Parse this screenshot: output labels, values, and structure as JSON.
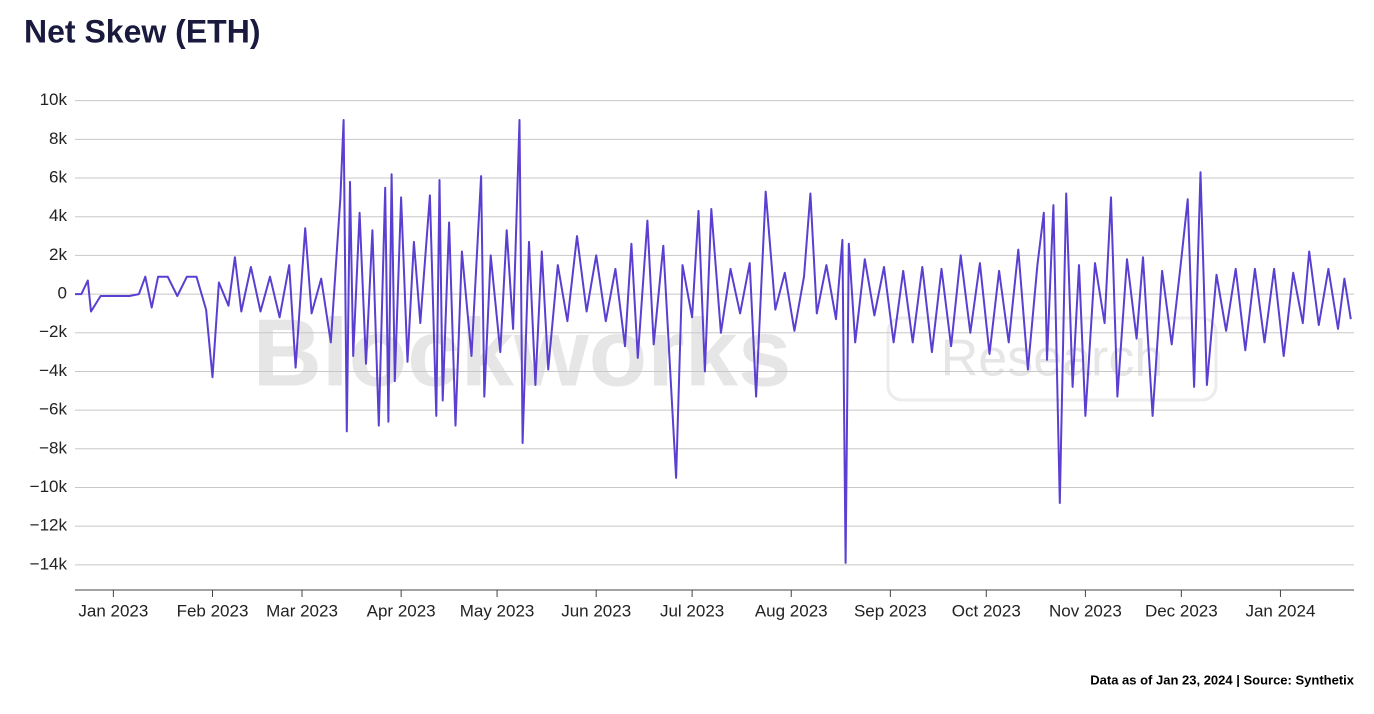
{
  "chart_data": {
    "type": "line",
    "title": "Net Skew (ETH)",
    "footnote": "Data as of Jan 23, 2024 | Source: Synthetix",
    "watermark": [
      "Blockworks",
      "Research"
    ],
    "color": "#5b3fd1",
    "grid": true,
    "x": [
      "2022-12-20",
      "2022-12-22",
      "2022-12-24",
      "2022-12-25",
      "2022-12-28",
      "2022-12-31",
      "2023-01-03",
      "2023-01-06",
      "2023-01-09",
      "2023-01-11",
      "2023-01-13",
      "2023-01-15",
      "2023-01-18",
      "2023-01-21",
      "2023-01-24",
      "2023-01-27",
      "2023-01-30",
      "2023-02-01",
      "2023-02-03",
      "2023-02-06",
      "2023-02-08",
      "2023-02-10",
      "2023-02-13",
      "2023-02-16",
      "2023-02-19",
      "2023-02-22",
      "2023-02-25",
      "2023-02-27",
      "2023-03-02",
      "2023-03-04",
      "2023-03-07",
      "2023-03-10",
      "2023-03-13",
      "2023-03-14",
      "2023-03-15",
      "2023-03-16",
      "2023-03-17",
      "2023-03-19",
      "2023-03-21",
      "2023-03-23",
      "2023-03-25",
      "2023-03-27",
      "2023-03-28",
      "2023-03-29",
      "2023-03-30",
      "2023-04-01",
      "2023-04-03",
      "2023-04-05",
      "2023-04-07",
      "2023-04-10",
      "2023-04-12",
      "2023-04-13",
      "2023-04-14",
      "2023-04-16",
      "2023-04-18",
      "2023-04-20",
      "2023-04-23",
      "2023-04-26",
      "2023-04-27",
      "2023-04-29",
      "2023-05-02",
      "2023-05-04",
      "2023-05-06",
      "2023-05-08",
      "2023-05-09",
      "2023-05-11",
      "2023-05-13",
      "2023-05-15",
      "2023-05-17",
      "2023-05-20",
      "2023-05-23",
      "2023-05-26",
      "2023-05-29",
      "2023-06-01",
      "2023-06-04",
      "2023-06-07",
      "2023-06-10",
      "2023-06-12",
      "2023-06-14",
      "2023-06-17",
      "2023-06-19",
      "2023-06-22",
      "2023-06-26",
      "2023-06-28",
      "2023-07-01",
      "2023-07-03",
      "2023-07-05",
      "2023-07-07",
      "2023-07-10",
      "2023-07-13",
      "2023-07-16",
      "2023-07-19",
      "2023-07-21",
      "2023-07-24",
      "2023-07-27",
      "2023-07-30",
      "2023-08-02",
      "2023-08-05",
      "2023-08-07",
      "2023-08-09",
      "2023-08-12",
      "2023-08-15",
      "2023-08-17",
      "2023-08-18",
      "2023-08-19",
      "2023-08-21",
      "2023-08-24",
      "2023-08-27",
      "2023-08-30",
      "2023-09-02",
      "2023-09-05",
      "2023-09-08",
      "2023-09-11",
      "2023-09-14",
      "2023-09-17",
      "2023-09-20",
      "2023-09-23",
      "2023-09-26",
      "2023-09-29",
      "2023-10-02",
      "2023-10-05",
      "2023-10-08",
      "2023-10-11",
      "2023-10-14",
      "2023-10-17",
      "2023-10-19",
      "2023-10-20",
      "2023-10-22",
      "2023-10-24",
      "2023-10-26",
      "2023-10-28",
      "2023-10-30",
      "2023-11-01",
      "2023-11-04",
      "2023-11-07",
      "2023-11-09",
      "2023-11-11",
      "2023-11-14",
      "2023-11-17",
      "2023-11-19",
      "2023-11-22",
      "2023-11-25",
      "2023-11-28",
      "2023-12-01",
      "2023-12-03",
      "2023-12-05",
      "2023-12-07",
      "2023-12-09",
      "2023-12-12",
      "2023-12-15",
      "2023-12-18",
      "2023-12-21",
      "2023-12-24",
      "2023-12-27",
      "2023-12-30",
      "2024-01-02",
      "2024-01-05",
      "2024-01-08",
      "2024-01-10",
      "2024-01-13",
      "2024-01-16",
      "2024-01-19",
      "2024-01-21",
      "2024-01-23"
    ],
    "values": [
      0,
      0,
      700,
      -900,
      -100,
      -100,
      -100,
      -100,
      0,
      900,
      -700,
      900,
      900,
      -100,
      900,
      900,
      -800,
      -4300,
      600,
      -600,
      1900,
      -900,
      1400,
      -900,
      900,
      -1200,
      1500,
      -3800,
      3400,
      -1000,
      800,
      -2500,
      5000,
      9000,
      -7100,
      5800,
      -3200,
      4200,
      -3600,
      3300,
      -6800,
      5500,
      -6600,
      6200,
      -4500,
      5000,
      -3500,
      2700,
      -1500,
      5100,
      -6300,
      5900,
      -5500,
      3700,
      -6800,
      2200,
      -3200,
      6100,
      -5300,
      2000,
      -3000,
      3300,
      -1800,
      9000,
      -7700,
      2700,
      -4700,
      2200,
      -3900,
      1500,
      -1400,
      3000,
      -900,
      2000,
      -1400,
      1300,
      -2700,
      2600,
      -3300,
      3800,
      -2600,
      2500,
      -9500,
      1500,
      -1200,
      4300,
      -4000,
      4400,
      -2000,
      1300,
      -1000,
      1600,
      -5300,
      5300,
      -800,
      1100,
      -1900,
      900,
      5200,
      -1000,
      1500,
      -1300,
      2800,
      -13900,
      2600,
      -2500,
      1800,
      -1100,
      1400,
      -2500,
      1200,
      -2500,
      1400,
      -3000,
      1300,
      -2700,
      2000,
      -2000,
      1600,
      -3100,
      1200,
      -2500,
      2300,
      -3900,
      1500,
      4200,
      -3400,
      4600,
      -10800,
      5200,
      -4800,
      1500,
      -6300,
      1600,
      -1500,
      5000,
      -5300,
      1800,
      -2300,
      1900,
      -6300,
      1200,
      -2600,
      1800,
      4900,
      -4800,
      6300,
      -4700,
      1000,
      -1900,
      1300,
      -2900,
      1300,
      -2500,
      1300,
      -3200,
      1100,
      -1500,
      2200,
      -1600,
      1300,
      -1800,
      800,
      -1300
    ],
    "xlim": [
      "2022-12-20",
      "2024-01-24"
    ],
    "xticks": [
      {
        "value": "2023-01-01",
        "label": "Jan 2023"
      },
      {
        "value": "2023-02-01",
        "label": "Feb 2023"
      },
      {
        "value": "2023-03-01",
        "label": "Mar 2023"
      },
      {
        "value": "2023-04-01",
        "label": "Apr 2023"
      },
      {
        "value": "2023-05-01",
        "label": "May 2023"
      },
      {
        "value": "2023-06-01",
        "label": "Jun 2023"
      },
      {
        "value": "2023-07-01",
        "label": "Jul 2023"
      },
      {
        "value": "2023-08-01",
        "label": "Aug 2023"
      },
      {
        "value": "2023-09-01",
        "label": "Sep 2023"
      },
      {
        "value": "2023-10-01",
        "label": "Oct 2023"
      },
      {
        "value": "2023-11-01",
        "label": "Nov 2023"
      },
      {
        "value": "2023-12-01",
        "label": "Dec 2023"
      },
      {
        "value": "2024-01-01",
        "label": "Jan 2024"
      }
    ],
    "ylim": [
      -15300,
      10500
    ],
    "yticks": [
      {
        "value": 10000,
        "label": "10k"
      },
      {
        "value": 8000,
        "label": "8k"
      },
      {
        "value": 6000,
        "label": "6k"
      },
      {
        "value": 4000,
        "label": "4k"
      },
      {
        "value": 2000,
        "label": "2k"
      },
      0,
      {
        "value": -2000,
        "label": "−2k"
      },
      {
        "value": -4000,
        "label": "−4k"
      },
      {
        "value": -6000,
        "label": "−6k"
      },
      {
        "value": -8000,
        "label": "−8k"
      },
      {
        "value": -10000,
        "label": "−10k"
      },
      {
        "value": -12000,
        "label": "−12k"
      },
      {
        "value": -14000,
        "label": "−14k"
      }
    ]
  }
}
